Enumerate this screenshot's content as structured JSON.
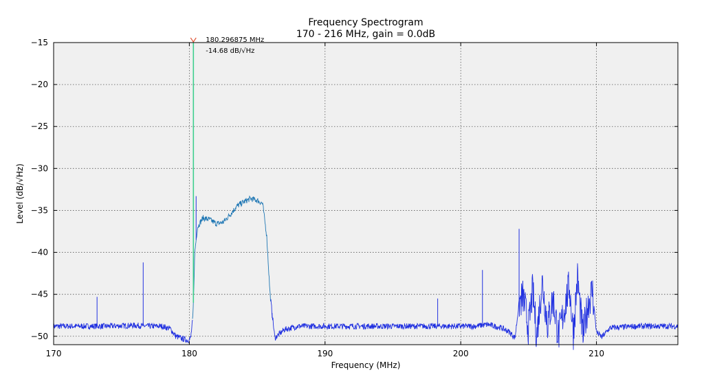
{
  "chart_data": {
    "type": "line",
    "title": "Frequency Spectrogram",
    "subtitle": "170 - 216 MHz, gain = 0.0dB",
    "xlabel": "Frequency (MHz)",
    "ylabel": "Level (dB/√Hz)",
    "xlim": [
      170,
      216
    ],
    "ylim": [
      -51,
      -15
    ],
    "xticks": [
      170,
      180,
      190,
      200,
      210
    ],
    "yticks": [
      -15,
      -20,
      -25,
      -30,
      -35,
      -40,
      -45,
      -50
    ],
    "xtick_labels": [
      "170",
      "180",
      "190",
      "200",
      "210"
    ],
    "ytick_labels": [
      "−15",
      "−20",
      "−25",
      "−30",
      "−35",
      "−40",
      "−45",
      "−50"
    ],
    "grid": true,
    "background": "#f0f0f0",
    "colors": {
      "series": "#1f2fe0",
      "band": "#1f77b4",
      "peak": "#3ecf8e",
      "marker": "#e05030"
    },
    "series": {
      "x": [
        170,
        172,
        174,
        176,
        177,
        178,
        178.6,
        179.0,
        179.5,
        179.9,
        180.1,
        180.25,
        180.3,
        180.4,
        180.6,
        181,
        181.5,
        182,
        182.5,
        183,
        183.5,
        184,
        184.5,
        185,
        185.4,
        185.7,
        185.95,
        186.3,
        187,
        188,
        190,
        193,
        196,
        198,
        200,
        201,
        202,
        203,
        203.6,
        204.0,
        204.3,
        204.6,
        205.0,
        205.3,
        205.6,
        206.0,
        206.4,
        206.8,
        207.2,
        207.6,
        208.0,
        208.3,
        208.6,
        209.0,
        209.4,
        209.7,
        210.0,
        210.4,
        211,
        213,
        216
      ],
      "y": [
        -48.8,
        -48.8,
        -48.8,
        -48.7,
        -48.8,
        -48.8,
        -49.1,
        -50,
        -50.3,
        -50.5,
        -50.2,
        -48,
        -46,
        -40,
        -37,
        -35.9,
        -36.1,
        -36.6,
        -36.4,
        -35.5,
        -34.5,
        -34,
        -33.6,
        -33.8,
        -34.2,
        -38,
        -45,
        -50.2,
        -49.2,
        -48.8,
        -48.8,
        -48.8,
        -48.8,
        -48.8,
        -48.8,
        -48.8,
        -48.6,
        -49.0,
        -49.5,
        -50.2,
        -46,
        -45.3,
        -49,
        -44.5,
        -50,
        -43.5,
        -48.5,
        -45.5,
        -50,
        -47,
        -44,
        -49.5,
        -43,
        -50,
        -46,
        -44.5,
        -49.5,
        -50.1,
        -49,
        -48.8,
        -48.8
      ]
    },
    "spurs": [
      {
        "x": 173.2,
        "y": -45.3
      },
      {
        "x": 176.6,
        "y": -41.2
      },
      {
        "x": 180.3,
        "y": -15.0
      },
      {
        "x": 180.5,
        "y": -33.3
      },
      {
        "x": 186.1,
        "y": -47.8
      },
      {
        "x": 198.3,
        "y": -45.5
      },
      {
        "x": 201.6,
        "y": -42.1
      },
      {
        "x": 204.3,
        "y": -37.2
      }
    ],
    "annotation": {
      "x": 180.296875,
      "y": -14.68,
      "line1": "180.296875 MHz",
      "line2": "-14.68 dB/√Hz"
    }
  }
}
